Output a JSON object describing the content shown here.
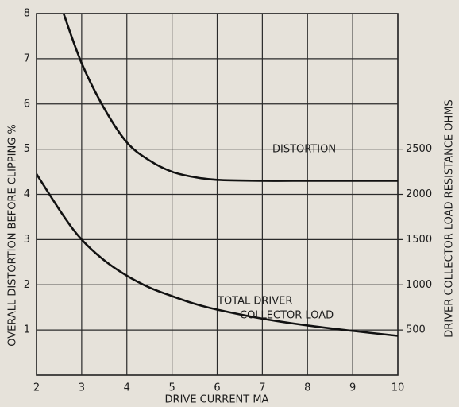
{
  "chart_data": {
    "type": "line",
    "xlabel": "DRIVE CURRENT MA",
    "ylabel": "OVERALL DISTORTION BEFORE CLIPPING %",
    "y2label": "DRIVER COLLECTOR LOAD RESISTANCE OHMS",
    "x": [
      2,
      2.6,
      3,
      3.5,
      4,
      4.5,
      5,
      5.5,
      6,
      7,
      8,
      9,
      10
    ],
    "series": [
      {
        "name": "DISTORTION",
        "color": "#111111",
        "values": [
          null,
          8,
          6.9,
          5.9,
          5.15,
          4.75,
          4.5,
          4.38,
          4.32,
          4.3,
          4.3,
          4.3,
          4.3
        ]
      },
      {
        "name": "TOTAL DRIVER COLLECTOR LOAD",
        "color": "#111111",
        "axis": "y2",
        "values": [
          2225,
          1760,
          1500,
          1270,
          1100,
          970,
          875,
          790,
          725,
          625,
          550,
          490,
          435
        ]
      }
    ],
    "annotations": [
      "DISTORTION",
      "TOTAL DRIVER",
      "COLLECTOR LOAD"
    ],
    "xlim": [
      2,
      10
    ],
    "xticks": [
      2,
      3,
      4,
      5,
      6,
      7,
      8,
      9,
      10
    ],
    "ylim": [
      0,
      8
    ],
    "yticks": [
      1,
      2,
      3,
      4,
      5,
      6,
      7,
      8
    ],
    "y2lim": [
      0,
      4000
    ],
    "y2ticks": [
      500,
      1000,
      1500,
      2000,
      2500
    ],
    "grid": true
  }
}
